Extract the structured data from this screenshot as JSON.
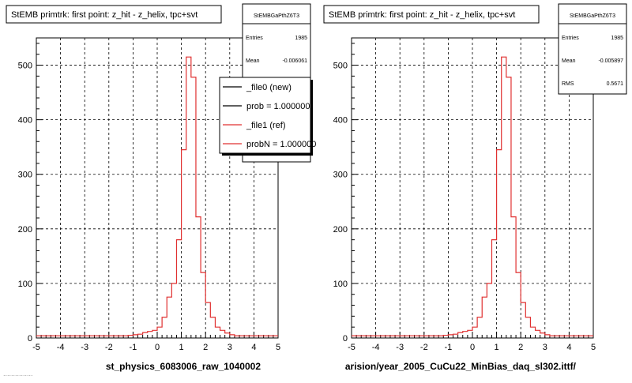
{
  "footer_left": "...............",
  "chart_data": [
    {
      "type": "histogram",
      "title": "StEMB primtrk: first point: z_hit - z_helix, tpc+svt",
      "xlabel": "st_physics_6083006_raw_1040002",
      "ylabel": "",
      "xlim": [
        -5,
        5
      ],
      "ylim": [
        0,
        550
      ],
      "x_ticks": [
        "-5",
        "-4",
        "-3",
        "-2",
        "-1",
        "0",
        "1",
        "2",
        "3",
        "4",
        "5"
      ],
      "y_ticks": [
        "0",
        "100",
        "200",
        "300",
        "400",
        "500"
      ],
      "grid": true,
      "bin_width": 0.2,
      "x_start": -5,
      "series": [
        {
          "name": "_file1 (ref)",
          "color": "#e03030",
          "values": [
            4,
            4,
            4,
            4,
            4,
            4,
            4,
            4,
            4,
            4,
            4,
            4,
            4,
            4,
            4,
            4,
            4,
            4,
            4,
            5,
            6,
            7,
            10,
            12,
            14,
            20,
            38,
            75,
            100,
            180,
            345,
            515,
            478,
            222,
            120,
            65,
            38,
            20,
            14,
            9,
            6,
            4,
            4,
            4,
            4,
            4,
            4,
            4,
            4,
            4
          ]
        }
      ],
      "stats": {
        "title": "StEMBGaPthZ6T3",
        "rows": [
          {
            "label": "Entries",
            "value": "1985"
          },
          {
            "label": "Mean",
            "value": "-0.006061"
          }
        ]
      },
      "legend": {
        "position": "top-right",
        "entries": [
          {
            "label": "_file0 (new)",
            "color": "#000000"
          },
          {
            "label": "prob = 1.000000",
            "color": "#000000"
          },
          {
            "label": "_file1 (ref)",
            "color": "#e03030"
          },
          {
            "label": "probN = 1.000000",
            "color": "#e03030"
          }
        ]
      }
    },
    {
      "type": "histogram",
      "title": "StEMB primtrk: first point: z_hit - z_helix, tpc+svt",
      "xlabel": "arision/year_2005_CuCu22_MinBias_daq_sl302.ittf/",
      "ylabel": "",
      "xlim": [
        -5,
        5
      ],
      "ylim": [
        0,
        550
      ],
      "x_ticks": [
        "-5",
        "-4",
        "-3",
        "-2",
        "-1",
        "0",
        "1",
        "2",
        "3",
        "4",
        "5"
      ],
      "y_ticks": [
        "0",
        "100",
        "200",
        "300",
        "400",
        "500"
      ],
      "grid": true,
      "bin_width": 0.2,
      "x_start": -5,
      "series": [
        {
          "name": "",
          "color": "#e03030",
          "values": [
            4,
            4,
            4,
            4,
            4,
            4,
            4,
            4,
            4,
            4,
            4,
            4,
            4,
            4,
            4,
            4,
            4,
            4,
            4,
            5,
            6,
            7,
            10,
            12,
            14,
            20,
            38,
            75,
            100,
            180,
            345,
            515,
            478,
            222,
            120,
            65,
            38,
            20,
            14,
            9,
            6,
            4,
            4,
            4,
            4,
            4,
            4,
            4,
            4,
            4
          ]
        }
      ],
      "stats": {
        "title": "StEMBGaPthZ6T3",
        "rows": [
          {
            "label": "Entries",
            "value": "1985"
          },
          {
            "label": "Mean",
            "value": "-0.005897"
          },
          {
            "label": "RMS",
            "value": "0.5671"
          }
        ]
      },
      "legend": null
    }
  ]
}
